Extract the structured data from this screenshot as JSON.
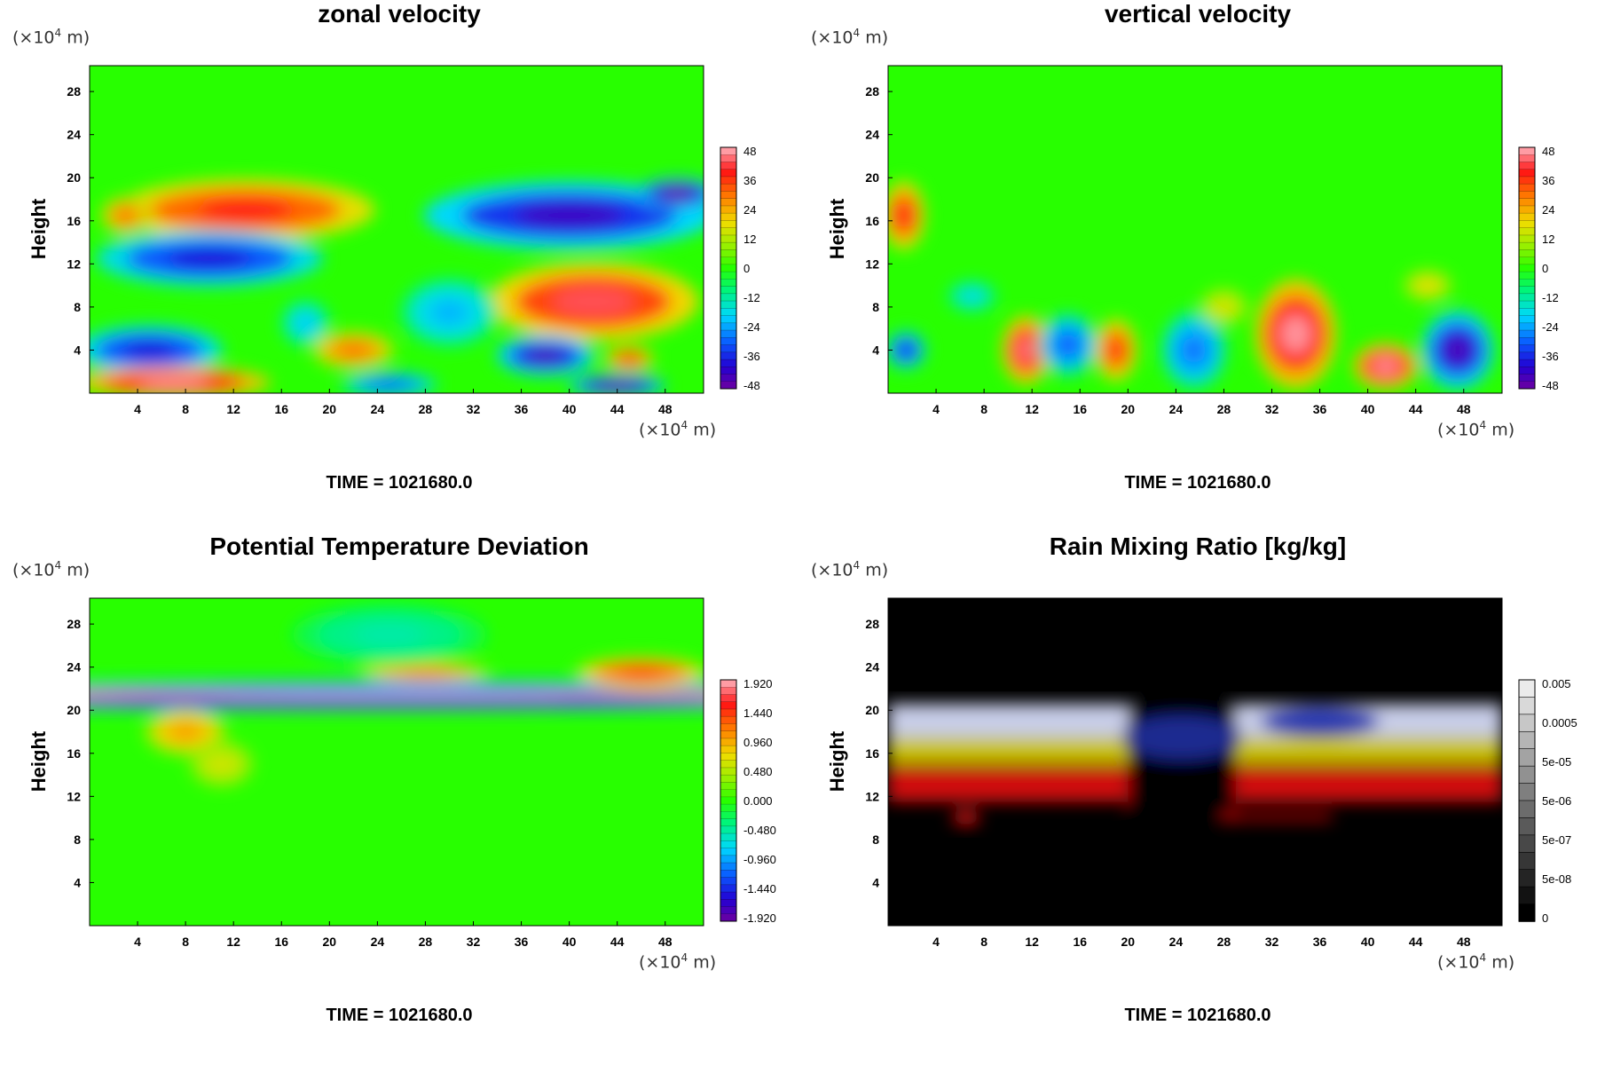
{
  "chart_data": [
    {
      "type": "heatmap",
      "title": "zonal velocity",
      "ylabel": "Height",
      "axis_unit": "(×10",
      "axis_unit_exp": "4",
      "axis_unit_tail": " m)",
      "x_ticks": [
        "4",
        "8",
        "12",
        "16",
        "20",
        "24",
        "28",
        "32",
        "36",
        "40",
        "44",
        "48"
      ],
      "y_ticks": [
        "4",
        "8",
        "12",
        "16",
        "20",
        "24",
        "28"
      ],
      "xlim": [
        0,
        51.2
      ],
      "ylim": [
        0,
        30.4
      ],
      "colorbar_labels": [
        "48",
        "36",
        "24",
        "12",
        "0",
        "-12",
        "-24",
        "-36",
        "-48"
      ],
      "colorbar_range": [
        -48,
        48
      ],
      "colormap": "rainbow",
      "time_label": "TIME = 1021680.0",
      "features": [
        {
          "x": 13,
          "y": 17,
          "rx": 8,
          "ry": 2.0,
          "v": 38
        },
        {
          "x": 40,
          "y": 16.5,
          "rx": 9,
          "ry": 2.2,
          "v": -42
        },
        {
          "x": 49,
          "y": 18.5,
          "rx": 2.5,
          "ry": 1.0,
          "v": -48
        },
        {
          "x": 10,
          "y": 12.5,
          "rx": 7,
          "ry": 1.8,
          "v": -38
        },
        {
          "x": 42,
          "y": 8.5,
          "rx": 6.5,
          "ry": 2.5,
          "v": 42
        },
        {
          "x": 30,
          "y": 7.5,
          "rx": 3,
          "ry": 2.2,
          "v": -22
        },
        {
          "x": 18,
          "y": 6.5,
          "rx": 1.5,
          "ry": 1.5,
          "v": -20
        },
        {
          "x": 5,
          "y": 4,
          "rx": 4.5,
          "ry": 1.6,
          "v": -38
        },
        {
          "x": 7,
          "y": 1.0,
          "rx": 6,
          "ry": 1.0,
          "v": 46
        },
        {
          "x": 22,
          "y": 4,
          "rx": 2.5,
          "ry": 1.2,
          "v": 30
        },
        {
          "x": 38,
          "y": 3.5,
          "rx": 3,
          "ry": 1.3,
          "v": -44
        },
        {
          "x": 44,
          "y": 0.7,
          "rx": 3,
          "ry": 0.7,
          "v": -48
        },
        {
          "x": 25,
          "y": 0.8,
          "rx": 3,
          "ry": 0.8,
          "v": -30
        },
        {
          "x": 45,
          "y": 3.2,
          "rx": 1.5,
          "ry": 0.8,
          "v": 36
        },
        {
          "x": 3,
          "y": 16.5,
          "rx": 1.5,
          "ry": 1.2,
          "v": 30
        }
      ]
    },
    {
      "type": "heatmap",
      "title": "vertical velocity",
      "ylabel": "Height",
      "axis_unit": "(×10",
      "axis_unit_exp": "4",
      "axis_unit_tail": " m)",
      "x_ticks": [
        "4",
        "8",
        "12",
        "16",
        "20",
        "24",
        "28",
        "32",
        "36",
        "40",
        "44",
        "48"
      ],
      "y_ticks": [
        "4",
        "8",
        "12",
        "16",
        "20",
        "24",
        "28"
      ],
      "xlim": [
        0,
        51.2
      ],
      "ylim": [
        0,
        30.4
      ],
      "colorbar_labels": [
        "48",
        "36",
        "24",
        "12",
        "0",
        "-12",
        "-24",
        "-36",
        "-48"
      ],
      "colorbar_range": [
        -48,
        48
      ],
      "colormap": "rainbow",
      "time_label": "TIME = 1021680.0",
      "features": [
        {
          "x": 11.5,
          "y": 4,
          "rx": 1.5,
          "ry": 2.2,
          "v": 44
        },
        {
          "x": 19,
          "y": 4,
          "rx": 1.3,
          "ry": 2.0,
          "v": 36
        },
        {
          "x": 34,
          "y": 5.5,
          "rx": 2.5,
          "ry": 3.5,
          "v": 46
        },
        {
          "x": 41.5,
          "y": 2.5,
          "rx": 2,
          "ry": 1.5,
          "v": 46
        },
        {
          "x": 47.5,
          "y": 4,
          "rx": 2.2,
          "ry": 2.5,
          "v": -44
        },
        {
          "x": 15,
          "y": 4.5,
          "rx": 1.8,
          "ry": 2.0,
          "v": -30
        },
        {
          "x": 25.5,
          "y": 4,
          "rx": 2,
          "ry": 2.5,
          "v": -28
        },
        {
          "x": 1.3,
          "y": 16.5,
          "rx": 1.3,
          "ry": 2.2,
          "v": 38
        },
        {
          "x": 1.5,
          "y": 4,
          "rx": 1.2,
          "ry": 1.2,
          "v": -36
        },
        {
          "x": 28,
          "y": 8,
          "rx": 1.5,
          "ry": 1.2,
          "v": 16
        },
        {
          "x": 7,
          "y": 9,
          "rx": 1.5,
          "ry": 1.0,
          "v": -18
        },
        {
          "x": 45,
          "y": 10,
          "rx": 1.5,
          "ry": 1.0,
          "v": 18
        }
      ]
    },
    {
      "type": "heatmap",
      "title": "Potential Temperature Deviation",
      "ylabel": "Height",
      "axis_unit": "(×10",
      "axis_unit_exp": "4",
      "axis_unit_tail": " m)",
      "x_ticks": [
        "4",
        "8",
        "12",
        "16",
        "20",
        "24",
        "28",
        "32",
        "36",
        "40",
        "44",
        "48"
      ],
      "y_ticks": [
        "4",
        "8",
        "12",
        "16",
        "20",
        "24",
        "28"
      ],
      "xlim": [
        0,
        51.2
      ],
      "ylim": [
        0,
        30.4
      ],
      "colorbar_labels": [
        "1.920",
        "1.440",
        "0.960",
        "0.480",
        "0.000",
        "-0.480",
        "-0.960",
        "-1.440",
        "-1.920"
      ],
      "colorbar_range": [
        -1.92,
        1.92
      ],
      "colormap": "rainbow",
      "time_label": "TIME = 1021680.0",
      "features": [
        {
          "x": 25,
          "y": 21.2,
          "rx": 30,
          "ry": 0.7,
          "v": 1.9
        },
        {
          "x": 25,
          "y": 20.6,
          "rx": 30,
          "ry": 0.45,
          "v": -1.9
        },
        {
          "x": 25,
          "y": 22.2,
          "rx": 30,
          "ry": 0.4,
          "v": -1.2
        },
        {
          "x": 28,
          "y": 23.5,
          "rx": 4,
          "ry": 0.6,
          "v": 1.2
        },
        {
          "x": 8,
          "y": 18,
          "rx": 2.5,
          "ry": 1.5,
          "v": 1.0
        },
        {
          "x": 11,
          "y": 15,
          "rx": 2,
          "ry": 1.5,
          "v": 0.6
        },
        {
          "x": 46,
          "y": 23.5,
          "rx": 4,
          "ry": 1.0,
          "v": 1.4
        },
        {
          "x": 25,
          "y": 27,
          "rx": 6,
          "ry": 2,
          "v": -0.5
        }
      ]
    },
    {
      "type": "heatmap",
      "title": "Rain Mixing Ratio [kg/kg]",
      "ylabel": "Height",
      "axis_unit": "(×10",
      "axis_unit_exp": "4",
      "axis_unit_tail": " m)",
      "x_ticks": [
        "4",
        "8",
        "12",
        "16",
        "20",
        "24",
        "28",
        "32",
        "36",
        "40",
        "44",
        "48"
      ],
      "y_ticks": [
        "4",
        "8",
        "12",
        "16",
        "20",
        "24",
        "28"
      ],
      "xlim": [
        0,
        51.2
      ],
      "ylim": [
        0,
        30.4
      ],
      "colorbar_labels": [
        "0.005",
        "0.0005",
        "5e-05",
        "5e-06",
        "5e-07",
        "5e-08",
        "0"
      ],
      "colormap": "gray",
      "time_label": "TIME = 1021680.0",
      "bands": [
        {
          "name": "upper",
          "x0": 0,
          "x1": 51.2,
          "y0": 17.5,
          "y1": 20.6
        },
        {
          "name": "middle",
          "x0": 0,
          "x1": 51.2,
          "y0": 15.0,
          "y1": 17.5
        },
        {
          "name": "lower",
          "x0": 0,
          "x1": 51.2,
          "y0": 11.5,
          "y1": 14.8
        }
      ],
      "gap_x": [
        20,
        29
      ]
    }
  ]
}
